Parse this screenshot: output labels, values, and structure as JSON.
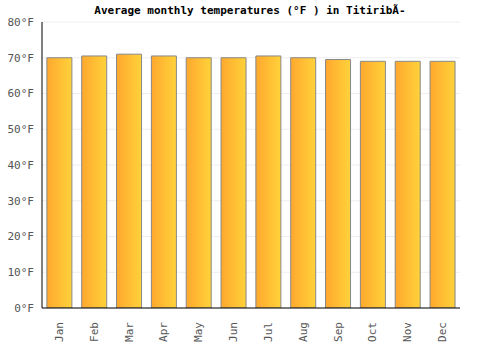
{
  "chart_data": {
    "type": "bar",
    "title": "Average monthly temperatures (°F ) in TitiribÃ-",
    "categories": [
      "Jan",
      "Feb",
      "Mar",
      "Apr",
      "May",
      "Jun",
      "Jul",
      "Aug",
      "Sep",
      "Oct",
      "Nov",
      "Dec"
    ],
    "values": [
      70,
      70.5,
      71,
      70.5,
      70,
      70,
      70.5,
      70,
      69.5,
      69,
      69,
      69
    ],
    "color": "#ffa82e",
    "ylim": [
      0,
      80
    ],
    "yticks": [
      {
        "value": 0,
        "label": "0°F"
      },
      {
        "value": 10,
        "label": "10°F"
      },
      {
        "value": 20,
        "label": "20°F"
      },
      {
        "value": 30,
        "label": "30°F"
      },
      {
        "value": 40,
        "label": "40°F"
      },
      {
        "value": 50,
        "label": "50°F"
      },
      {
        "value": 60,
        "label": "60°F"
      },
      {
        "value": 70,
        "label": "70°F"
      },
      {
        "value": 80,
        "label": "80°F"
      }
    ],
    "grid": true
  }
}
